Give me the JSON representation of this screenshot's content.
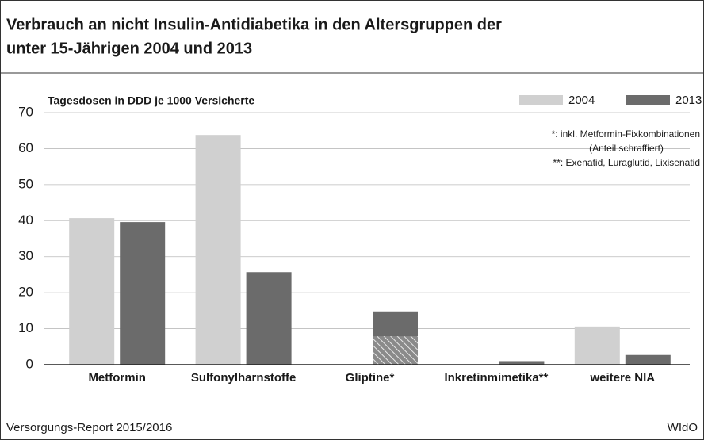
{
  "chart_data": {
    "type": "bar",
    "title": [
      "Verbrauch an nicht Insulin-Antidiabetika in den Altersgruppen der",
      "unter 15-Jährigen 2004 und 2013"
    ],
    "ylabel": "Tagesdosen in DDD je 1000 Versicherte",
    "categories": [
      "Metformin",
      "Sulfonylharnstoffe",
      "Gliptine*",
      "Inkretinmimetika**",
      "weitere NIA"
    ],
    "series": [
      {
        "name": "2004",
        "color": "#d0d0d0",
        "values": [
          40.7,
          63.8,
          0,
          0,
          10.6
        ]
      },
      {
        "name": "2013",
        "color": "#6b6b6b",
        "values": [
          39.6,
          25.7,
          14.8,
          1.0,
          2.7
        ],
        "hatched": [
          null,
          null,
          7.9,
          null,
          null
        ]
      }
    ],
    "ylim": [
      0,
      70
    ],
    "yticks": [
      0,
      10,
      20,
      30,
      40,
      50,
      60,
      70
    ],
    "grid": true,
    "legend": "top-right",
    "annotations": [
      "*: inkl. Metformin-Fixkombinationen",
      "(Anteil schraffiert)",
      "**: Exenatid, Luraglutid, Lixisenatid"
    ],
    "source": "Versorgungs-Report 2015/2016",
    "publisher": "WIdO"
  }
}
